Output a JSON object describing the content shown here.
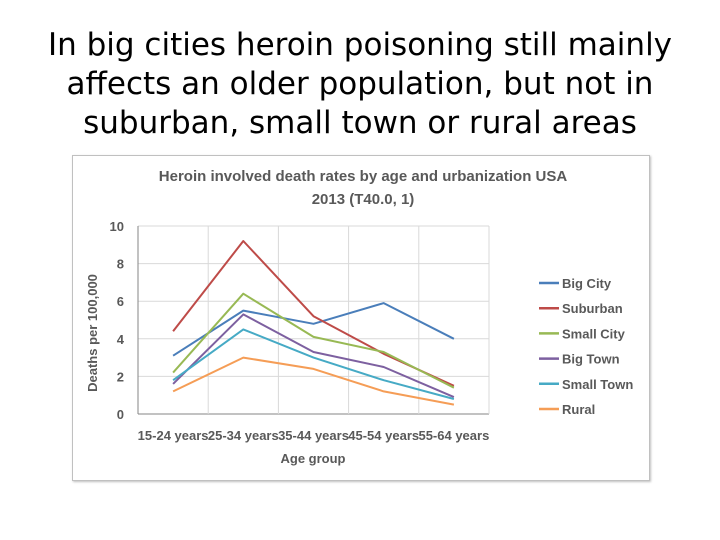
{
  "slide": {
    "title_lines": [
      "In big cities heroin poisoning still mainly",
      "affects an older population, but not in",
      "suburban, small town or rural areas"
    ]
  },
  "chart_data": {
    "type": "line",
    "title_lines": [
      "Heroin involved death rates by age and urbanization USA",
      "2013 (T40.0, 1)"
    ],
    "xlabel": "Age group",
    "ylabel": "Deaths per 100,000",
    "categories": [
      "15-24 years",
      "25-34 years",
      "35-44 years",
      "45-54 years",
      "55-64 years"
    ],
    "ylim": [
      0,
      10
    ],
    "yticks": [
      0,
      2,
      4,
      6,
      8,
      10
    ],
    "grid": true,
    "legend_position": "right",
    "series": [
      {
        "name": "Big City",
        "color": "#4a7eba",
        "values": [
          3.1,
          5.5,
          4.8,
          5.9,
          4.0
        ]
      },
      {
        "name": "Suburban",
        "color": "#be4b48",
        "values": [
          4.4,
          9.2,
          5.2,
          3.2,
          1.5
        ]
      },
      {
        "name": "Small City",
        "color": "#98b954",
        "values": [
          2.2,
          6.4,
          4.1,
          3.3,
          1.4
        ]
      },
      {
        "name": "Big Town",
        "color": "#7d60a0",
        "values": [
          1.6,
          5.3,
          3.3,
          2.5,
          0.9
        ]
      },
      {
        "name": "Small Town",
        "color": "#46aac5",
        "values": [
          1.8,
          4.5,
          3.0,
          1.8,
          0.8
        ]
      },
      {
        "name": "Rural",
        "color": "#f59d56",
        "values": [
          1.2,
          3.0,
          2.4,
          1.2,
          0.5
        ]
      }
    ]
  }
}
